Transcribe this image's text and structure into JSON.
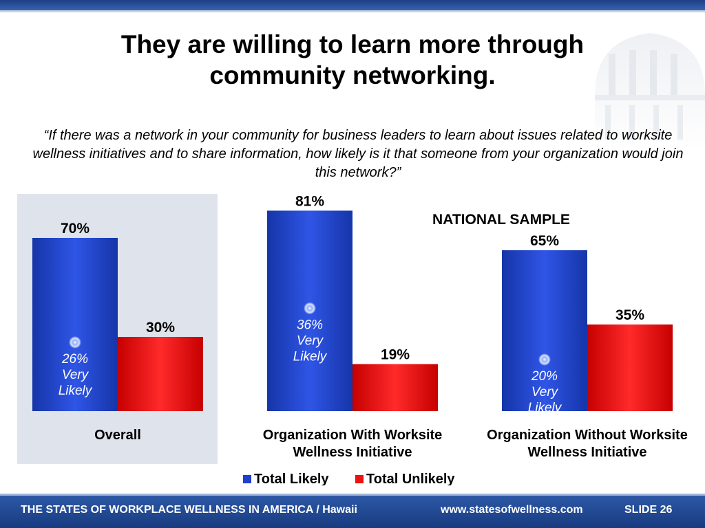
{
  "slide": {
    "title": "They are willing to learn more through community networking.",
    "question": "“If there was a network in your community for business leaders to learn about issues related to worksite wellness initiatives and to share information, how likely is it that someone from your organization would join this network?”",
    "national_label": "NATIONAL SAMPLE",
    "footer_left": "THE STATES OF WORKPLACE WELLNESS IN AMERICA / Hawaii",
    "footer_url": "www.statesofwellness.com",
    "footer_slide": "SLIDE 26"
  },
  "chart_data": {
    "type": "bar",
    "categories": [
      "Overall",
      "Organization With Worksite Wellness Initiative",
      "Organization Without Worksite Wellness Initiative"
    ],
    "category_lines": [
      [
        "Overall"
      ],
      [
        "Organization With Worksite",
        "Wellness Initiative"
      ],
      [
        "Organization Without Worksite",
        "Wellness Initiative"
      ]
    ],
    "series": [
      {
        "name": "Total Likely",
        "values": [
          70,
          81,
          65
        ],
        "value_labels": [
          "70%",
          "81%",
          "65%"
        ],
        "color": "#1f3fcc"
      },
      {
        "name": "Total Unlikely",
        "values": [
          30,
          19,
          35
        ],
        "value_labels": [
          "30%",
          "19%",
          "35%"
        ],
        "color": "#ee1111"
      }
    ],
    "annotations": [
      {
        "category": "Overall",
        "lines": [
          "26%",
          "Very",
          "Likely"
        ]
      },
      {
        "category": "Organization With Worksite Wellness Initiative",
        "lines": [
          "36%",
          "Very",
          "Likely"
        ]
      },
      {
        "category": "Organization Without Worksite Wellness Initiative",
        "lines": [
          "20%",
          "Very",
          "Likely"
        ]
      }
    ],
    "legend_position": "bottom",
    "grid": false,
    "ylim": [
      0,
      100
    ]
  }
}
